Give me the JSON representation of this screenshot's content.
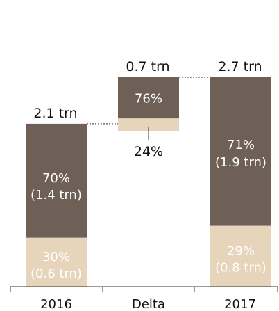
{
  "chart_data": {
    "type": "bar",
    "categories": [
      "2016",
      "Delta",
      "2017"
    ],
    "totals": [
      "2.1 trn",
      "0.7 trn",
      "2.7 trn"
    ],
    "total_values": [
      2.1,
      0.7,
      2.7
    ],
    "dark_shares": [
      0.7,
      0.76,
      0.71
    ],
    "segments": [
      {
        "top_pct": "70%",
        "top_value": "(1.4 trn)",
        "bottom_pct": "30%",
        "bottom_value": "(0.6 trn)"
      },
      {
        "top_pct": "76%",
        "top_value": "",
        "bottom_pct": "24%",
        "bottom_value": ""
      },
      {
        "top_pct": "71%",
        "top_value": "(1.9 trn)",
        "bottom_pct": "29%",
        "bottom_value": "(0.8 trn)"
      }
    ],
    "colors": {
      "dark": "#6f6057",
      "light": "#e6d5bb",
      "light_text": "#ffffff",
      "axis": "#333333"
    }
  }
}
